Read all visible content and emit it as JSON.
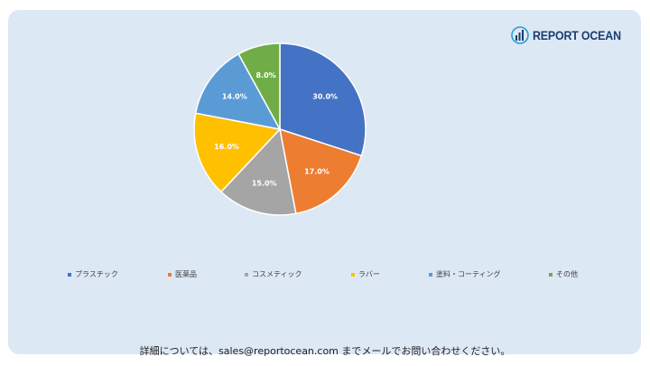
{
  "brand": {
    "name": "REPORT OCEAN",
    "color": "#1b3d6e",
    "accent": "#2a9bd7"
  },
  "chart_data": {
    "type": "pie",
    "title": "",
    "categories": [
      "プラスチック",
      "医薬品",
      "コスメティック",
      "ラバー",
      "塗料・コーティング",
      "その他"
    ],
    "values": [
      30.0,
      17.0,
      15.0,
      16.0,
      14.0,
      8.0
    ],
    "labels": [
      "30.0%",
      "17.0%",
      "15.0%",
      "16.0%",
      "14.0%",
      "8.0%"
    ],
    "colors": [
      "#4472c4",
      "#ed7d31",
      "#a5a5a5",
      "#ffc000",
      "#5b9bd5",
      "#70ad47"
    ],
    "legend_position": "bottom",
    "start_angle": "12 o'clock",
    "direction": "clockwise"
  },
  "footer": {
    "text": "詳細については、sales@reportocean.com までメールでお問い合わせください。"
  }
}
